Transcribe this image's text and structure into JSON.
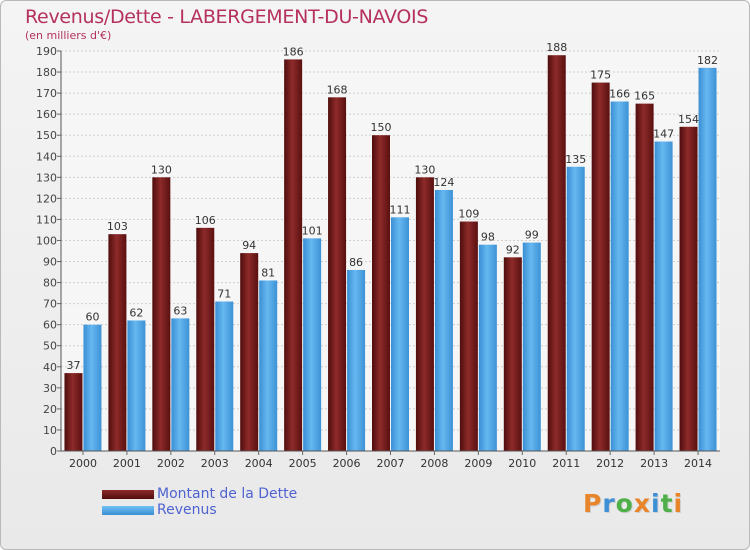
{
  "chart_data": {
    "type": "bar",
    "title": "Revenus/Dette - LABERGEMENT-DU-NAVOIS",
    "subtitle": "(en milliers d'€)",
    "categories": [
      "2000",
      "2001",
      "2002",
      "2003",
      "2004",
      "2005",
      "2006",
      "2007",
      "2008",
      "2009",
      "2010",
      "2011",
      "2012",
      "2013",
      "2014"
    ],
    "series": [
      {
        "name": "Montant de la Dette",
        "color": "#7a1c1c",
        "values": [
          37,
          103,
          130,
          106,
          94,
          186,
          168,
          150,
          130,
          109,
          92,
          188,
          175,
          165,
          154
        ]
      },
      {
        "name": "Revenus",
        "color": "#4aa3e6",
        "values": [
          60,
          62,
          63,
          71,
          81,
          101,
          86,
          111,
          124,
          98,
          99,
          135,
          166,
          147,
          182
        ]
      }
    ],
    "ylim": [
      0,
      190
    ],
    "yticks": [
      0,
      10,
      20,
      30,
      40,
      50,
      60,
      70,
      80,
      90,
      100,
      110,
      120,
      130,
      140,
      150,
      160,
      170,
      180,
      190
    ],
    "grid": true,
    "legend": "bottom-left"
  },
  "branding": {
    "logo_letters": [
      "P",
      "r",
      "o",
      "x",
      "i",
      "t",
      "i"
    ],
    "logo_colors": [
      "#e8842a",
      "#3d8fd6",
      "#4fb04a",
      "#e8842a",
      "#3d8fd6",
      "#4fb04a",
      "#e8842a"
    ]
  }
}
